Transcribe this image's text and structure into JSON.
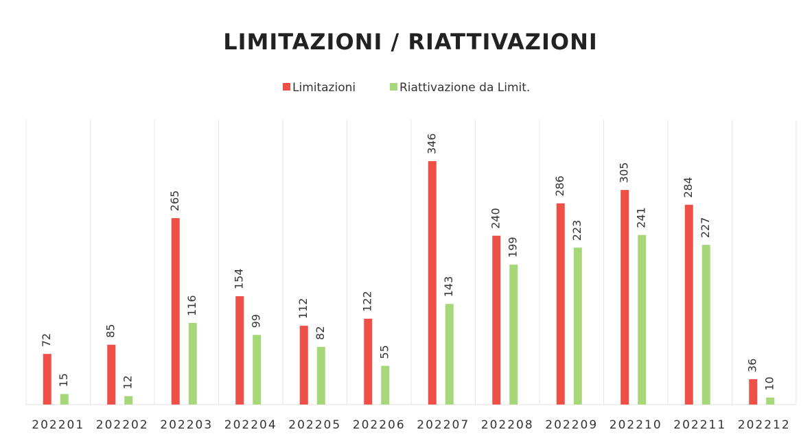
{
  "chart_data": {
    "type": "bar",
    "title": "LIMITAZIONI / RIATTIVAZIONI",
    "categories": [
      "202201",
      "202202",
      "202203",
      "202204",
      "202205",
      "202206",
      "202207",
      "202208",
      "202209",
      "202210",
      "202211",
      "202212"
    ],
    "series": [
      {
        "name": "Limitazioni",
        "color": "#ee4f47",
        "values": [
          72,
          85,
          265,
          154,
          112,
          122,
          346,
          240,
          286,
          305,
          284,
          36
        ]
      },
      {
        "name": "Riattivazione da Limit.",
        "color": "#a6d779",
        "values": [
          15,
          12,
          116,
          99,
          82,
          55,
          143,
          199,
          223,
          241,
          227,
          10
        ]
      }
    ],
    "legend": "top"
  }
}
